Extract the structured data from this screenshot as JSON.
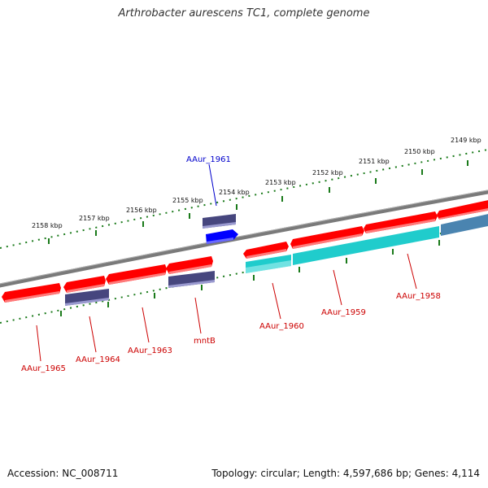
{
  "title": "Arthrobacter aurescens TC1, complete genome",
  "footer": {
    "accession": "Accession: NC_008711",
    "stats": "Topology: circular; Length: 4,597,686 bp; Genes: 4,114"
  },
  "colors": {
    "backbone": "#7a7a7a",
    "ruler": "#1a7a1a",
    "cds_forward": "#ff0000",
    "cds_reverse": "#ff0000",
    "gene_blue": "#0000ff",
    "gene_navy": "#46467e",
    "rna_cyan": "#20cccc",
    "label_red": "#cc0000",
    "label_blue": "#0000cc"
  },
  "ruler": {
    "unit": "kbp",
    "ticks": [
      "2149 kbp",
      "2150 kbp",
      "2151 kbp",
      "2152 kbp",
      "2153 kbp",
      "2154 kbp",
      "2155 kbp",
      "2156 kbp",
      "2157 kbp",
      "2158 kbp"
    ]
  },
  "genes": [
    {
      "name": "AAur_1958",
      "color": "red"
    },
    {
      "name": "AAur_1959",
      "color": "red"
    },
    {
      "name": "AAur_1960",
      "color": "red"
    },
    {
      "name": "AAur_1961",
      "color": "blue"
    },
    {
      "name": "mntB",
      "color": "red"
    },
    {
      "name": "AAur_1963",
      "color": "red"
    },
    {
      "name": "AAur_1964",
      "color": "red"
    },
    {
      "name": "AAur_1965",
      "color": "red"
    }
  ]
}
